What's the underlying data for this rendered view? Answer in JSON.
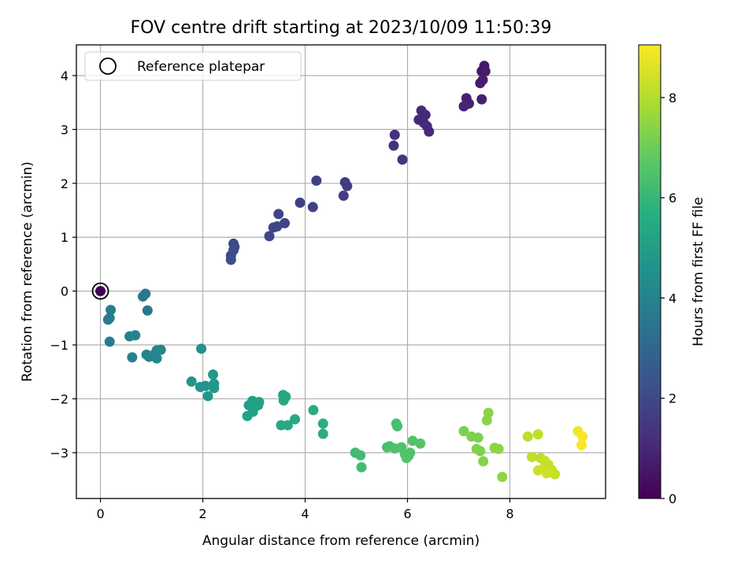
{
  "chart_data": {
    "type": "scatter",
    "title": "FOV centre drift starting at 2023/10/09 11:50:39",
    "xlabel": "Angular distance from reference (arcmin)",
    "ylabel": "Rotation from reference (arcmin)",
    "xlim": [
      -0.47,
      9.87
    ],
    "ylim": [
      -3.85,
      4.57
    ],
    "xticks": [
      0,
      2,
      4,
      6,
      8
    ],
    "yticks": [
      -3,
      -2,
      -1,
      0,
      1,
      2,
      3,
      4
    ],
    "grid": true,
    "legend": {
      "label": "Reference platepar",
      "placement": "top-left"
    },
    "reference_point": {
      "x": 0,
      "y": 0
    },
    "colorbar": {
      "label": "Hours from first FF file",
      "range": [
        0,
        9.05
      ],
      "ticks": [
        0,
        2,
        4,
        6,
        8
      ],
      "colormap": "viridis"
    },
    "points": [
      {
        "x": 0.0,
        "y": 0.0,
        "h": 0.0
      },
      {
        "x": 7.5,
        "y": 4.18,
        "h": 0.6
      },
      {
        "x": 7.45,
        "y": 4.08,
        "h": 0.6
      },
      {
        "x": 7.52,
        "y": 4.08,
        "h": 0.65
      },
      {
        "x": 7.47,
        "y": 3.92,
        "h": 0.7
      },
      {
        "x": 7.42,
        "y": 3.86,
        "h": 0.7
      },
      {
        "x": 7.45,
        "y": 3.56,
        "h": 0.8
      },
      {
        "x": 7.15,
        "y": 3.58,
        "h": 0.85
      },
      {
        "x": 7.2,
        "y": 3.48,
        "h": 0.85
      },
      {
        "x": 7.1,
        "y": 3.43,
        "h": 0.9
      },
      {
        "x": 6.27,
        "y": 3.35,
        "h": 1.0
      },
      {
        "x": 6.35,
        "y": 3.27,
        "h": 1.0
      },
      {
        "x": 6.22,
        "y": 3.18,
        "h": 1.05
      },
      {
        "x": 6.32,
        "y": 3.12,
        "h": 1.05
      },
      {
        "x": 6.38,
        "y": 3.06,
        "h": 1.1
      },
      {
        "x": 6.42,
        "y": 2.96,
        "h": 1.1
      },
      {
        "x": 5.75,
        "y": 2.9,
        "h": 1.3
      },
      {
        "x": 5.73,
        "y": 2.7,
        "h": 1.3
      },
      {
        "x": 5.9,
        "y": 2.44,
        "h": 1.4
      },
      {
        "x": 4.78,
        "y": 2.02,
        "h": 1.55
      },
      {
        "x": 4.82,
        "y": 1.95,
        "h": 1.6
      },
      {
        "x": 4.75,
        "y": 1.77,
        "h": 1.6
      },
      {
        "x": 4.22,
        "y": 2.05,
        "h": 1.7
      },
      {
        "x": 3.9,
        "y": 1.64,
        "h": 1.75
      },
      {
        "x": 4.15,
        "y": 1.56,
        "h": 1.75
      },
      {
        "x": 3.48,
        "y": 1.43,
        "h": 1.85
      },
      {
        "x": 3.6,
        "y": 1.26,
        "h": 1.9
      },
      {
        "x": 3.45,
        "y": 1.2,
        "h": 1.9
      },
      {
        "x": 3.38,
        "y": 1.18,
        "h": 1.9
      },
      {
        "x": 3.3,
        "y": 1.02,
        "h": 1.95
      },
      {
        "x": 2.6,
        "y": 0.88,
        "h": 2.1
      },
      {
        "x": 2.62,
        "y": 0.82,
        "h": 2.1
      },
      {
        "x": 2.6,
        "y": 0.76,
        "h": 2.15
      },
      {
        "x": 2.55,
        "y": 0.66,
        "h": 2.15
      },
      {
        "x": 2.55,
        "y": 0.58,
        "h": 2.2
      },
      {
        "x": 0.88,
        "y": -0.05,
        "h": 3.6
      },
      {
        "x": 0.83,
        "y": -0.1,
        "h": 3.6
      },
      {
        "x": 0.92,
        "y": -0.36,
        "h": 3.65
      },
      {
        "x": 0.2,
        "y": -0.35,
        "h": 3.75
      },
      {
        "x": 0.18,
        "y": -0.5,
        "h": 3.75
      },
      {
        "x": 0.15,
        "y": -0.53,
        "h": 3.8
      },
      {
        "x": 0.18,
        "y": -0.94,
        "h": 3.8
      },
      {
        "x": 0.68,
        "y": -0.82,
        "h": 4.0
      },
      {
        "x": 0.57,
        "y": -0.84,
        "h": 4.0
      },
      {
        "x": 0.62,
        "y": -1.23,
        "h": 4.05
      },
      {
        "x": 0.9,
        "y": -1.18,
        "h": 4.1
      },
      {
        "x": 0.95,
        "y": -1.22,
        "h": 4.1
      },
      {
        "x": 1.1,
        "y": -1.1,
        "h": 4.15
      },
      {
        "x": 1.18,
        "y": -1.09,
        "h": 4.15
      },
      {
        "x": 1.1,
        "y": -1.25,
        "h": 4.2
      },
      {
        "x": 1.05,
        "y": -1.18,
        "h": 4.2
      },
      {
        "x": 1.97,
        "y": -1.07,
        "h": 4.6
      },
      {
        "x": 1.78,
        "y": -1.68,
        "h": 4.7
      },
      {
        "x": 1.95,
        "y": -1.78,
        "h": 4.7
      },
      {
        "x": 2.05,
        "y": -1.76,
        "h": 4.75
      },
      {
        "x": 2.1,
        "y": -1.95,
        "h": 4.75
      },
      {
        "x": 2.2,
        "y": -1.55,
        "h": 4.8
      },
      {
        "x": 2.22,
        "y": -1.72,
        "h": 4.8
      },
      {
        "x": 2.22,
        "y": -1.8,
        "h": 4.85
      },
      {
        "x": 2.97,
        "y": -2.04,
        "h": 5.1
      },
      {
        "x": 2.9,
        "y": -2.12,
        "h": 5.1
      },
      {
        "x": 3.1,
        "y": -2.06,
        "h": 5.15
      },
      {
        "x": 3.08,
        "y": -2.12,
        "h": 5.15
      },
      {
        "x": 2.98,
        "y": -2.24,
        "h": 5.2
      },
      {
        "x": 2.87,
        "y": -2.32,
        "h": 5.2
      },
      {
        "x": 3.57,
        "y": -1.93,
        "h": 5.35
      },
      {
        "x": 3.62,
        "y": -1.96,
        "h": 5.35
      },
      {
        "x": 3.58,
        "y": -2.03,
        "h": 5.4
      },
      {
        "x": 3.53,
        "y": -2.49,
        "h": 5.4
      },
      {
        "x": 3.66,
        "y": -2.49,
        "h": 5.45
      },
      {
        "x": 3.8,
        "y": -2.38,
        "h": 5.45
      },
      {
        "x": 4.16,
        "y": -2.21,
        "h": 5.55
      },
      {
        "x": 4.35,
        "y": -2.46,
        "h": 5.6
      },
      {
        "x": 4.35,
        "y": -2.65,
        "h": 5.6
      },
      {
        "x": 4.98,
        "y": -3.0,
        "h": 6.2
      },
      {
        "x": 5.08,
        "y": -3.05,
        "h": 6.25
      },
      {
        "x": 5.1,
        "y": -3.27,
        "h": 6.25
      },
      {
        "x": 5.78,
        "y": -2.46,
        "h": 6.35
      },
      {
        "x": 5.8,
        "y": -2.51,
        "h": 6.35
      },
      {
        "x": 5.6,
        "y": -2.9,
        "h": 6.4
      },
      {
        "x": 5.65,
        "y": -2.88,
        "h": 6.4
      },
      {
        "x": 5.75,
        "y": -2.92,
        "h": 6.45
      },
      {
        "x": 5.88,
        "y": -2.9,
        "h": 6.45
      },
      {
        "x": 5.95,
        "y": -3.03,
        "h": 6.5
      },
      {
        "x": 6.02,
        "y": -3.06,
        "h": 6.5
      },
      {
        "x": 6.05,
        "y": -3.0,
        "h": 6.5
      },
      {
        "x": 5.98,
        "y": -3.1,
        "h": 6.55
      },
      {
        "x": 6.1,
        "y": -2.78,
        "h": 6.55
      },
      {
        "x": 6.25,
        "y": -2.83,
        "h": 6.6
      },
      {
        "x": 7.1,
        "y": -2.6,
        "h": 7.2
      },
      {
        "x": 7.25,
        "y": -2.7,
        "h": 7.25
      },
      {
        "x": 7.38,
        "y": -2.72,
        "h": 7.25
      },
      {
        "x": 7.35,
        "y": -2.93,
        "h": 7.3
      },
      {
        "x": 7.42,
        "y": -2.97,
        "h": 7.3
      },
      {
        "x": 7.48,
        "y": -3.16,
        "h": 7.35
      },
      {
        "x": 7.58,
        "y": -2.26,
        "h": 7.4
      },
      {
        "x": 7.55,
        "y": -2.4,
        "h": 7.4
      },
      {
        "x": 7.7,
        "y": -2.91,
        "h": 7.45
      },
      {
        "x": 7.78,
        "y": -2.93,
        "h": 7.45
      },
      {
        "x": 7.85,
        "y": -3.45,
        "h": 7.5
      },
      {
        "x": 8.35,
        "y": -2.7,
        "h": 8.1
      },
      {
        "x": 8.55,
        "y": -2.66,
        "h": 8.15
      },
      {
        "x": 8.43,
        "y": -3.08,
        "h": 8.2
      },
      {
        "x": 8.6,
        "y": -3.1,
        "h": 8.2
      },
      {
        "x": 8.68,
        "y": -3.15,
        "h": 8.25
      },
      {
        "x": 8.75,
        "y": -3.22,
        "h": 8.25
      },
      {
        "x": 8.82,
        "y": -3.32,
        "h": 8.3
      },
      {
        "x": 8.88,
        "y": -3.4,
        "h": 8.3
      },
      {
        "x": 8.55,
        "y": -3.33,
        "h": 8.35
      },
      {
        "x": 8.65,
        "y": -3.3,
        "h": 8.35
      },
      {
        "x": 8.72,
        "y": -3.38,
        "h": 8.4
      },
      {
        "x": 9.33,
        "y": -2.6,
        "h": 8.9
      },
      {
        "x": 9.42,
        "y": -2.7,
        "h": 8.95
      },
      {
        "x": 9.4,
        "y": -2.86,
        "h": 9.0
      }
    ]
  }
}
